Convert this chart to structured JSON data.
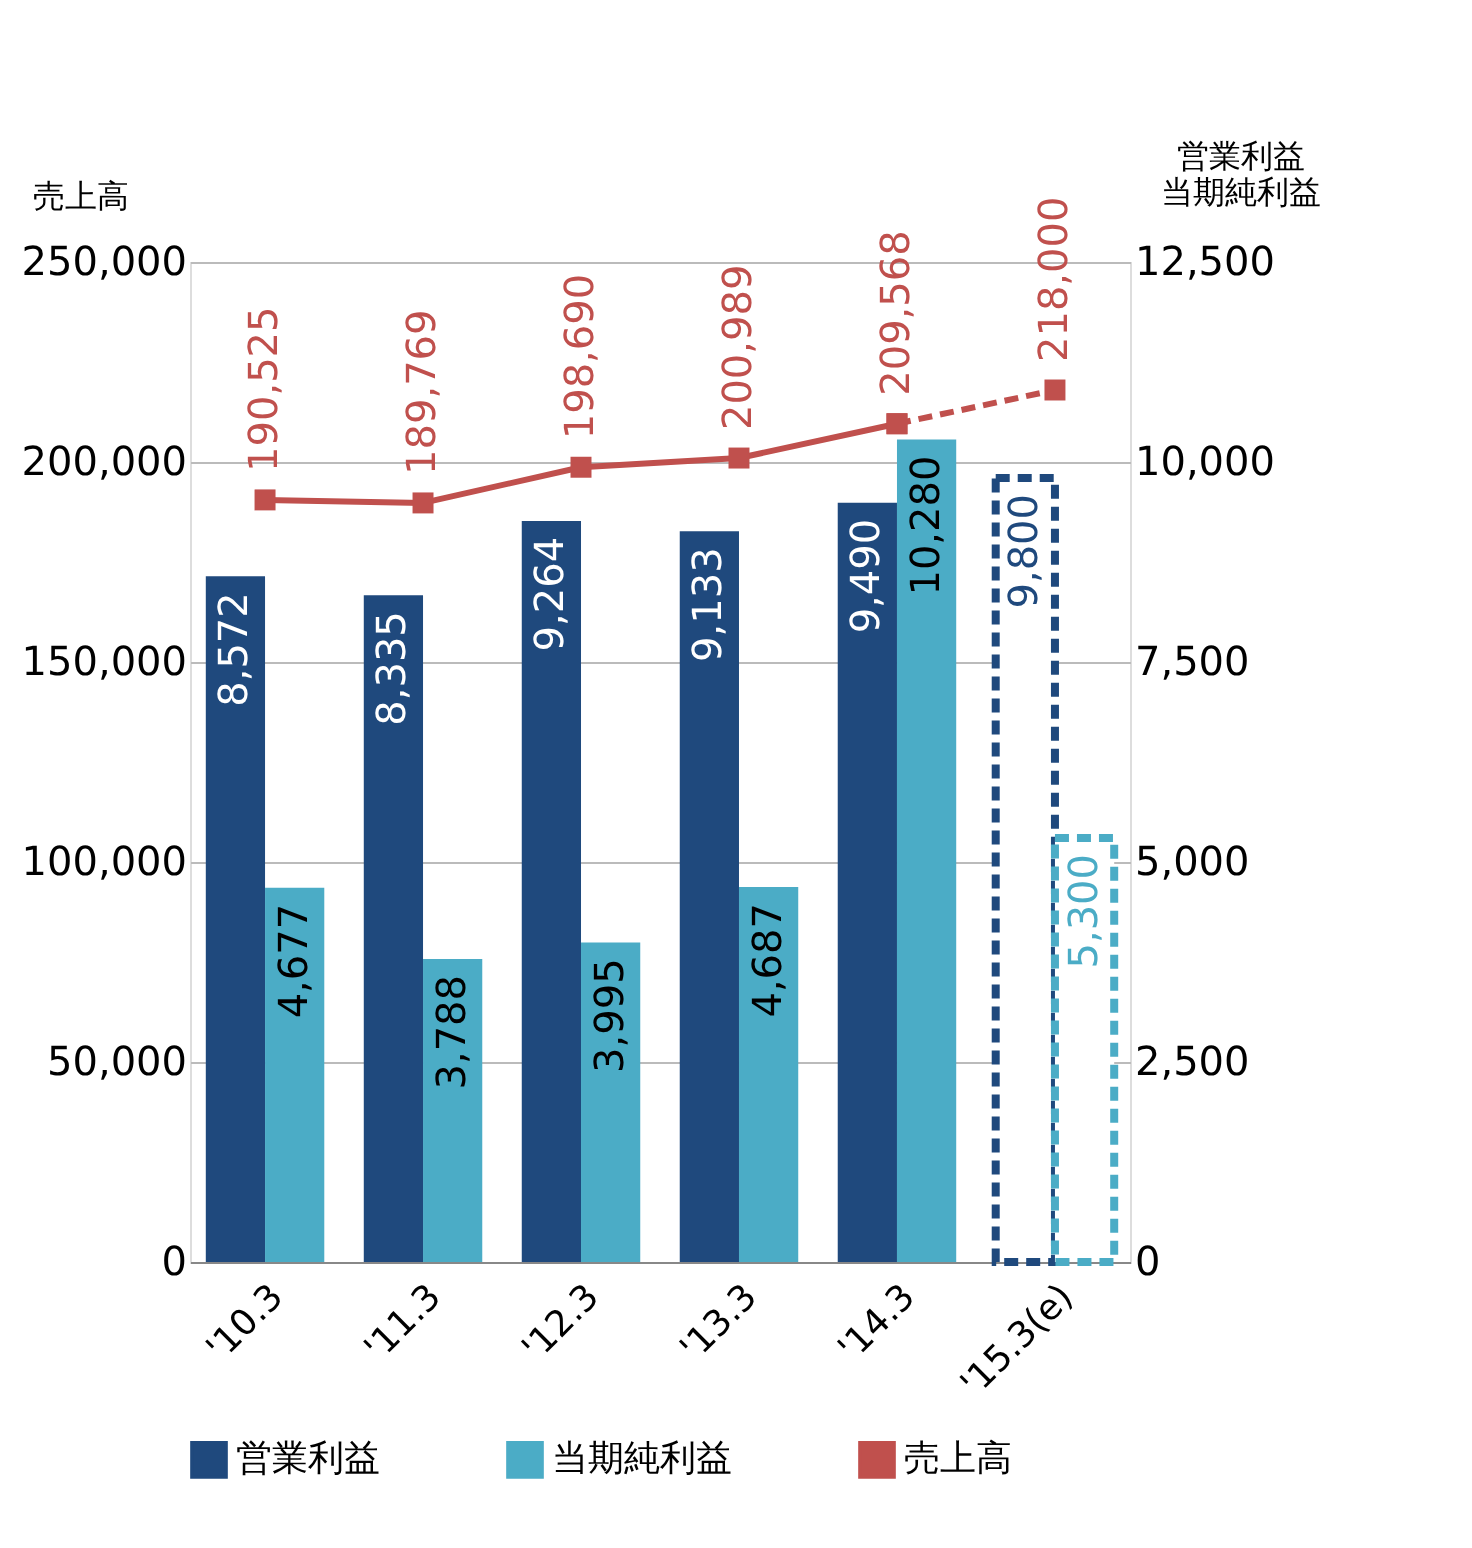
{
  "chart_data": {
    "type": "bar",
    "categories": [
      "'10.3",
      "'11.3",
      "'12.3",
      "'13.3",
      "'14.3",
      "'15.3(e)"
    ],
    "ylabel": "売上高",
    "y2label": [
      "営業利益",
      "当期純利益"
    ],
    "ylim": [
      0,
      250000
    ],
    "yticks": [
      0,
      {
        "value": 50000,
        "label": "50,000"
      },
      {
        "value": 100000,
        "label": "100,000"
      },
      {
        "value": 150000,
        "label": "150,000"
      },
      {
        "value": 200000,
        "label": "200,000"
      },
      {
        "value": 250000,
        "label": "250,000"
      }
    ],
    "y2lim": [
      0,
      12500
    ],
    "y2ticks": [
      0,
      {
        "value": 2500,
        "label": "2,500"
      },
      {
        "value": 5000,
        "label": "5,000"
      },
      {
        "value": 7500,
        "label": "7,500"
      },
      {
        "value": 10000,
        "label": "10,000"
      },
      {
        "value": 12500,
        "label": "12,500"
      }
    ],
    "grid": "y",
    "legend": "bottom",
    "series": [
      {
        "name": "営業利益",
        "axis": "y2",
        "color": "#1f497d",
        "values": [
          8572,
          8335,
          9264,
          9133,
          9490,
          null
        ],
        "value_labels": [
          "8,572",
          "8,335",
          "9,264",
          "9,133",
          "9,490",
          null
        ]
      },
      {
        "name": "当期純利益",
        "axis": "y2",
        "color": "#4bacc6",
        "values": [
          4677,
          3788,
          3995,
          4687,
          10280,
          null
        ],
        "value_labels": [
          "4,677",
          "3,788",
          "3,995",
          "4,687",
          "10,280",
          null
        ]
      },
      {
        "axis": "y2",
        "color": "#1f497d",
        "line_style": "dashed",
        "values": [
          null,
          null,
          null,
          null,
          null,
          9800
        ],
        "value_labels": [
          null,
          null,
          null,
          null,
          null,
          "9,800"
        ]
      },
      {
        "axis": "y2",
        "color": "#4bacc6",
        "line_style": "dashed",
        "values": [
          null,
          null,
          null,
          null,
          null,
          5300
        ],
        "value_labels": [
          null,
          null,
          null,
          null,
          null,
          "5,300"
        ]
      },
      {
        "name": "売上高",
        "type": "line",
        "color": "#c0504d",
        "marker": "square",
        "line_style": "solid",
        "values": [
          190525,
          189769,
          198690,
          200989,
          209568,
          null
        ],
        "value_labels": [
          "190,525",
          "189,769",
          "198,690",
          "200,989",
          "209,568",
          null
        ]
      },
      {
        "type": "line",
        "color": "#c0504d",
        "marker": "square",
        "line_style": "dashed",
        "values": [
          null,
          null,
          null,
          null,
          209568,
          218000
        ],
        "value_labels": [
          null,
          null,
          null,
          null,
          null,
          "218,000"
        ]
      }
    ]
  }
}
